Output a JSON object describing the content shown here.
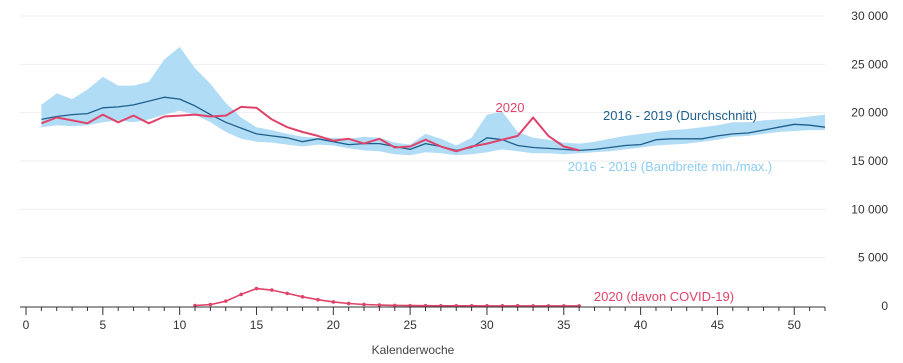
{
  "chart_data": {
    "type": "line",
    "xlabel": "Kalenderwoche",
    "ylabel": "",
    "xlim": [
      0,
      52
    ],
    "ylim": [
      0,
      30000
    ],
    "x_ticks": [
      0,
      5,
      10,
      15,
      20,
      25,
      30,
      35,
      40,
      45,
      50
    ],
    "y_ticks": [
      0,
      5000,
      10000,
      15000,
      20000,
      25000,
      30000
    ],
    "y_tick_labels": [
      "0",
      "5 000",
      "10 000",
      "15 000",
      "20 000",
      "25 000",
      "30 000"
    ],
    "grid": "horizontal",
    "colors": {
      "band": "#a9d8f5",
      "average": "#1f5f8b",
      "year2020": "#e0436a",
      "covid": "#e0436a",
      "grid": "#eeeeee",
      "axis": "#333333"
    },
    "weeks": [
      1,
      2,
      3,
      4,
      5,
      6,
      7,
      8,
      9,
      10,
      11,
      12,
      13,
      14,
      15,
      16,
      17,
      18,
      19,
      20,
      21,
      22,
      23,
      24,
      25,
      26,
      27,
      28,
      29,
      30,
      31,
      32,
      33,
      34,
      35,
      36,
      37,
      38,
      39,
      40,
      41,
      42,
      43,
      44,
      45,
      46,
      47,
      48,
      49,
      50,
      51,
      52
    ],
    "series": [
      {
        "name": "2016 - 2019 (Bandbreite min./max.)",
        "kind": "band",
        "min": [
          18500,
          18700,
          18600,
          18700,
          19000,
          19200,
          19000,
          19300,
          19800,
          20200,
          19800,
          19000,
          18000,
          17300,
          17000,
          16900,
          16700,
          16500,
          16700,
          16600,
          16300,
          16100,
          16000,
          15700,
          15600,
          15900,
          15800,
          15600,
          15700,
          15900,
          16200,
          16000,
          15800,
          15800,
          15700,
          15800,
          15900,
          16000,
          16200,
          16400,
          16600,
          16700,
          16800,
          17000,
          17200,
          17500,
          17600,
          17800,
          18000,
          18100,
          18200,
          18200
        ],
        "max": [
          20800,
          22000,
          21400,
          22400,
          23700,
          22800,
          22800,
          23200,
          25500,
          26800,
          24600,
          23000,
          21000,
          19500,
          18500,
          18200,
          17800,
          17500,
          17400,
          17400,
          17300,
          17500,
          17400,
          16900,
          16700,
          17800,
          17300,
          16600,
          17400,
          19800,
          20100,
          18000,
          17400,
          17200,
          16900,
          16800,
          17000,
          17300,
          17600,
          17800,
          18000,
          18200,
          18300,
          18500,
          18700,
          19000,
          19000,
          19200,
          19300,
          19400,
          19600,
          19800
        ],
        "legend": "2016 - 2019 (Bandbreite min./max.)"
      },
      {
        "name": "2016 - 2019 (Durchschnitt)",
        "kind": "line",
        "values": [
          19300,
          19600,
          19800,
          19900,
          20500,
          20600,
          20800,
          21200,
          21600,
          21400,
          20700,
          19800,
          19000,
          18400,
          17800,
          17600,
          17400,
          17000,
          17300,
          17000,
          16700,
          16800,
          16800,
          16500,
          16200,
          16800,
          16500,
          16100,
          16400,
          17400,
          17200,
          16600,
          16400,
          16300,
          16200,
          16100,
          16200,
          16400,
          16600,
          16700,
          17200,
          17300,
          17300,
          17300,
          17600,
          17800,
          17900,
          18200,
          18500,
          18800,
          18700,
          18500
        ],
        "legend": "2016 - 2019 (Durchschnitt)"
      },
      {
        "name": "2020",
        "kind": "line",
        "values": [
          18900,
          19500,
          19200,
          18900,
          19800,
          19000,
          19700,
          18900,
          19600,
          19700,
          19800,
          19600,
          19700,
          20600,
          20500,
          19300,
          18500,
          18000,
          17600,
          17100,
          17300,
          16800,
          17300,
          16400,
          16500,
          17200,
          16500,
          16000,
          16500,
          16800,
          17200,
          17600,
          19500,
          17600,
          16500,
          16100
        ],
        "legend": "2020"
      },
      {
        "name": "2020 (davon COVID-19)",
        "kind": "line",
        "start_week": 11,
        "values": [
          50,
          150,
          500,
          1200,
          1800,
          1650,
          1300,
          950,
          650,
          420,
          260,
          160,
          100,
          60,
          40,
          30,
          25,
          20,
          20,
          15,
          15,
          15,
          12,
          12,
          10,
          10
        ],
        "legend": "2020 (davon COVID-19)"
      }
    ]
  }
}
